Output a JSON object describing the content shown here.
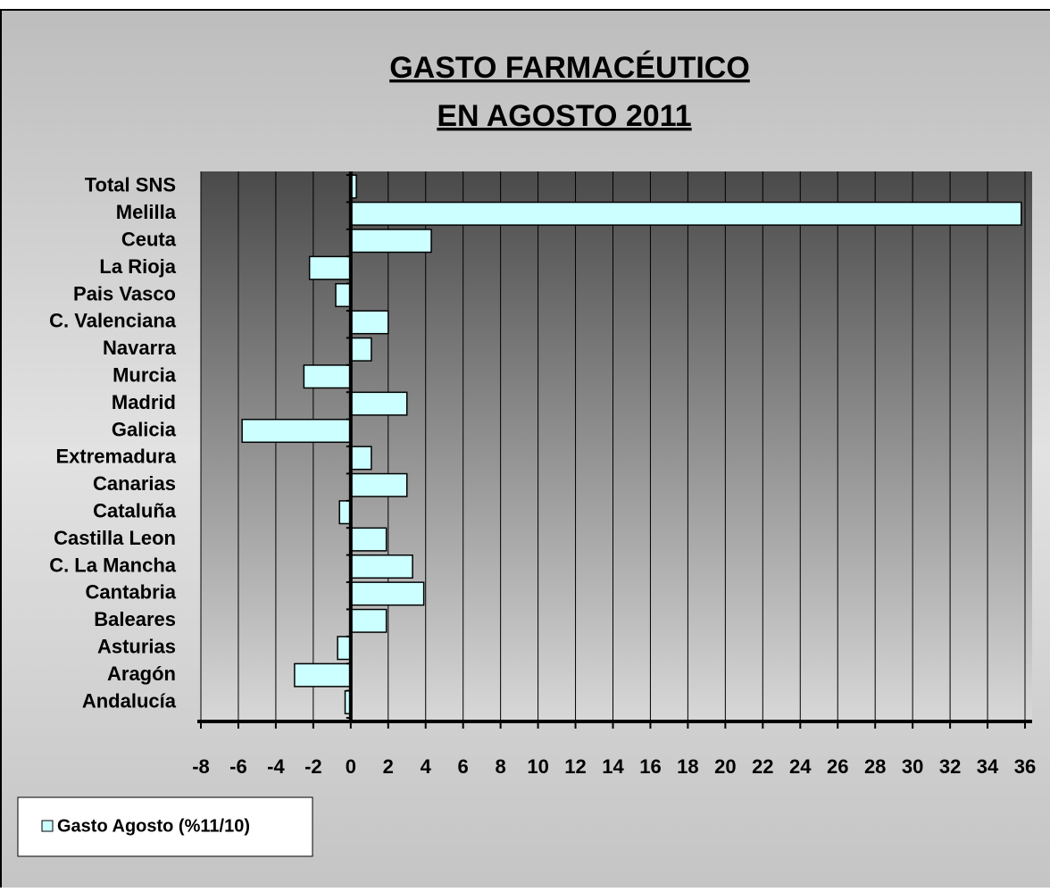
{
  "chart_data": {
    "type": "bar",
    "orientation": "horizontal",
    "title": [
      "GASTO FARMACÉUTICO",
      "EN AGOSTO 2011"
    ],
    "categories": [
      "Total SNS",
      "Melilla",
      "Ceuta",
      "La Rioja",
      "Pais Vasco",
      "C. Valenciana",
      "Navarra",
      "Murcia",
      "Madrid",
      "Galicia",
      "Extremadura",
      "Canarias",
      "Cataluña",
      "Castilla Leon",
      "C. La Mancha",
      "Cantabria",
      "Baleares",
      "Asturias",
      "Aragón",
      "Andalucía"
    ],
    "series": [
      {
        "name": "Gasto Agosto (%11/10)",
        "color": "#ccffff",
        "values": [
          0.3,
          35.8,
          4.3,
          -2.2,
          -0.8,
          2.0,
          1.1,
          -2.5,
          3.0,
          -5.8,
          1.1,
          3.0,
          -0.6,
          1.9,
          3.3,
          3.9,
          1.9,
          -0.7,
          -3.0,
          -0.3
        ]
      }
    ],
    "xlim": [
      -8,
      36
    ],
    "xticks": [
      -8,
      -6,
      -4,
      -2,
      0,
      2,
      4,
      6,
      8,
      10,
      12,
      14,
      16,
      18,
      20,
      22,
      24,
      26,
      28,
      30,
      32,
      34,
      36
    ],
    "grid": true,
    "legend": "bottom-left"
  }
}
